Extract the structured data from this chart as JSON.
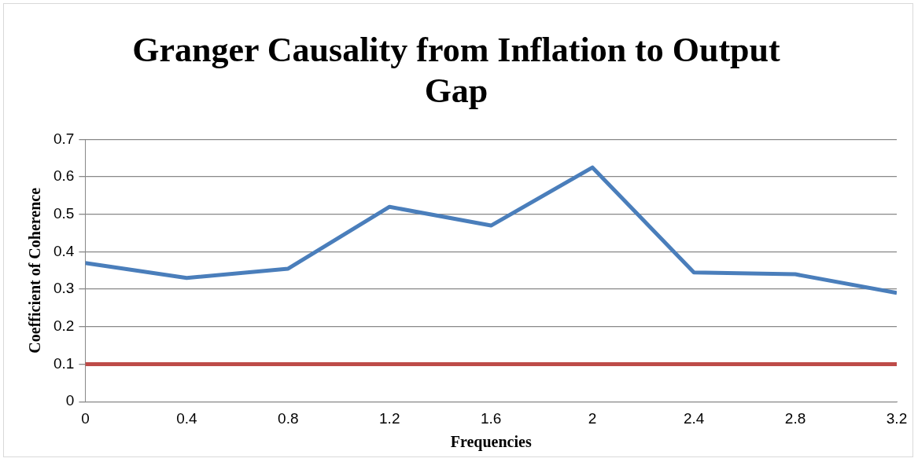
{
  "chart_data": {
    "type": "line",
    "title": "Granger Causality from Inflation to Output Gap",
    "xlabel": "Frequencies",
    "ylabel": "Coefficient of Coherence",
    "x": [
      0,
      0.4,
      0.8,
      1.2,
      1.6,
      2,
      2.4,
      2.8,
      3.2
    ],
    "series": [
      {
        "color": "#4a7ebb",
        "values": [
          0.37,
          0.33,
          0.355,
          0.52,
          0.47,
          0.625,
          0.345,
          0.34,
          0.29
        ]
      },
      {
        "color": "#be4b48",
        "values": [
          0.1,
          0.1,
          0.1,
          0.1,
          0.1,
          0.1,
          0.1,
          0.1,
          0.1
        ]
      }
    ],
    "xlim": [
      0,
      3.2
    ],
    "xticks": [
      0,
      0.4,
      0.8,
      1.2,
      1.6,
      2,
      2.4,
      2.8,
      3.2
    ],
    "ylim": [
      0,
      0.7
    ],
    "yticks": [
      0,
      0.1,
      0.2,
      0.3,
      0.4,
      0.5,
      0.6,
      0.7
    ],
    "grid": "y",
    "legend": false,
    "marker": "none",
    "line_style": "solid"
  }
}
